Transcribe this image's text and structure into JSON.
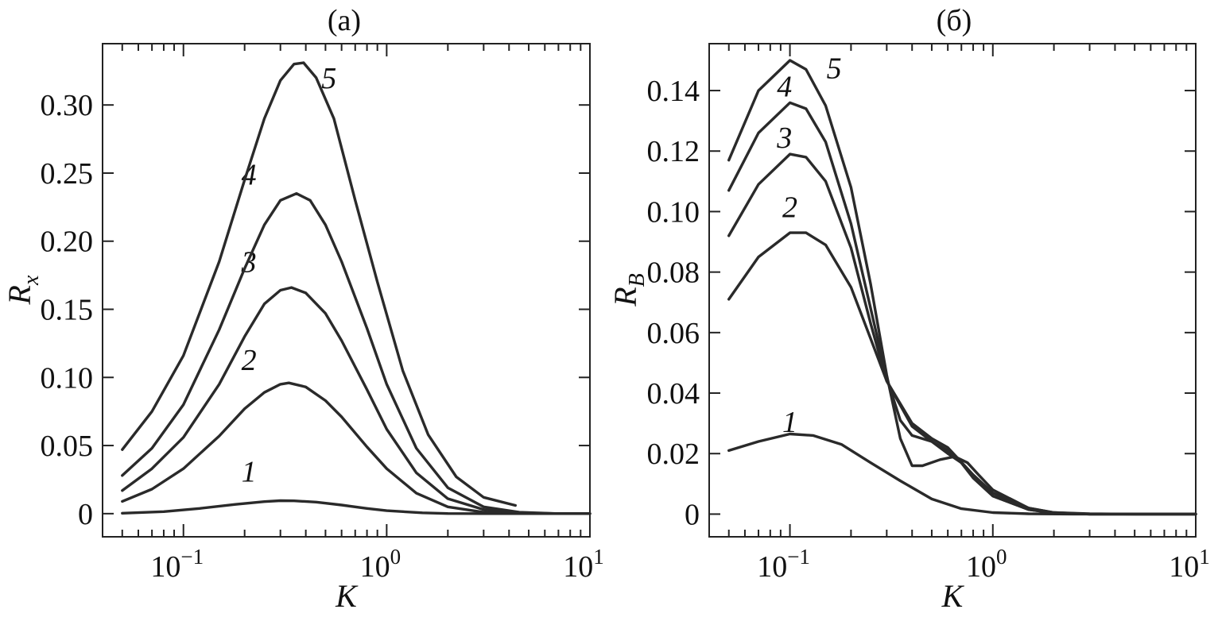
{
  "chart_data": [
    {
      "type": "line",
      "panel": "(a)",
      "xlabel": "K",
      "ylabel_main": "R",
      "ylabel_sub": "x",
      "xscale": "log",
      "xlim": [
        0.04,
        10
      ],
      "ylim": [
        -0.017,
        0.345
      ],
      "xticks": [
        {
          "value": 0.1,
          "base": "10",
          "exp": "−1"
        },
        {
          "value": 1,
          "base": "10",
          "exp": "0"
        },
        {
          "value": 10,
          "base": "10",
          "exp": "1"
        }
      ],
      "yticks": [
        {
          "value": 0,
          "label": "0"
        },
        {
          "value": 0.05,
          "label": "0.05"
        },
        {
          "value": 0.1,
          "label": "0.10"
        },
        {
          "value": 0.15,
          "label": "0.15"
        },
        {
          "value": 0.2,
          "label": "0.20"
        },
        {
          "value": 0.25,
          "label": "0.25"
        },
        {
          "value": 0.3,
          "label": "0.30"
        }
      ],
      "series": [
        {
          "name": "1",
          "label_at": [
            0.21,
            0.031
          ],
          "points": [
            [
              0.05,
              0.0003
            ],
            [
              0.08,
              0.0015
            ],
            [
              0.12,
              0.0038
            ],
            [
              0.18,
              0.0068
            ],
            [
              0.25,
              0.0088
            ],
            [
              0.3,
              0.0095
            ],
            [
              0.35,
              0.0094
            ],
            [
              0.45,
              0.0085
            ],
            [
              0.6,
              0.0063
            ],
            [
              0.8,
              0.0038
            ],
            [
              1.0,
              0.0022
            ],
            [
              1.5,
              0.0006
            ],
            [
              2.0,
              0.0001
            ],
            [
              3.0,
              0
            ],
            [
              5.0,
              0
            ],
            [
              10,
              0
            ]
          ]
        },
        {
          "name": "2",
          "label_at": [
            0.21,
            0.113
          ],
          "points": [
            [
              0.05,
              0.009
            ],
            [
              0.07,
              0.018
            ],
            [
              0.1,
              0.033
            ],
            [
              0.15,
              0.057
            ],
            [
              0.2,
              0.077
            ],
            [
              0.25,
              0.089
            ],
            [
              0.3,
              0.095
            ],
            [
              0.33,
              0.096
            ],
            [
              0.4,
              0.093
            ],
            [
              0.5,
              0.083
            ],
            [
              0.6,
              0.071
            ],
            [
              0.8,
              0.049
            ],
            [
              1.0,
              0.033
            ],
            [
              1.4,
              0.015
            ],
            [
              2.0,
              0.005
            ],
            [
              3.0,
              0.001
            ],
            [
              4.0,
              0.0002
            ],
            [
              6.0,
              0
            ],
            [
              10,
              0
            ]
          ]
        },
        {
          "name": "3",
          "label_at": [
            0.21,
            0.185
          ],
          "points": [
            [
              0.05,
              0.017
            ],
            [
              0.07,
              0.033
            ],
            [
              0.1,
              0.056
            ],
            [
              0.15,
              0.095
            ],
            [
              0.2,
              0.13
            ],
            [
              0.25,
              0.154
            ],
            [
              0.3,
              0.164
            ],
            [
              0.34,
              0.166
            ],
            [
              0.4,
              0.162
            ],
            [
              0.5,
              0.147
            ],
            [
              0.6,
              0.127
            ],
            [
              0.8,
              0.091
            ],
            [
              1.0,
              0.062
            ],
            [
              1.4,
              0.03
            ],
            [
              2.0,
              0.011
            ],
            [
              3.0,
              0.003
            ],
            [
              4.5,
              0.0005
            ],
            [
              7.0,
              0
            ],
            [
              10,
              0
            ]
          ]
        },
        {
          "name": "4",
          "label_at": [
            0.21,
            0.249
          ],
          "points": [
            [
              0.05,
              0.028
            ],
            [
              0.07,
              0.048
            ],
            [
              0.1,
              0.08
            ],
            [
              0.15,
              0.135
            ],
            [
              0.2,
              0.18
            ],
            [
              0.25,
              0.212
            ],
            [
              0.3,
              0.23
            ],
            [
              0.36,
              0.235
            ],
            [
              0.42,
              0.23
            ],
            [
              0.5,
              0.212
            ],
            [
              0.6,
              0.185
            ],
            [
              0.8,
              0.136
            ],
            [
              1.0,
              0.095
            ],
            [
              1.4,
              0.048
            ],
            [
              2.0,
              0.019
            ],
            [
              3.0,
              0.005
            ],
            [
              4.5,
              0.001
            ],
            [
              7.0,
              0
            ],
            [
              10,
              0
            ]
          ]
        },
        {
          "name": "5",
          "label_at": [
            0.52,
            0.32
          ],
          "points": [
            [
              0.05,
              0.047
            ],
            [
              0.07,
              0.075
            ],
            [
              0.1,
              0.116
            ],
            [
              0.15,
              0.185
            ],
            [
              0.2,
              0.245
            ],
            [
              0.25,
              0.29
            ],
            [
              0.3,
              0.318
            ],
            [
              0.35,
              0.33
            ],
            [
              0.39,
              0.331
            ],
            [
              0.45,
              0.32
            ],
            [
              0.55,
              0.29
            ],
            [
              0.7,
              0.23
            ],
            [
              0.9,
              0.17
            ],
            [
              1.2,
              0.105
            ],
            [
              1.6,
              0.058
            ],
            [
              2.2,
              0.027
            ],
            [
              3.0,
              0.012
            ],
            [
              4.3,
              0.006
            ]
          ]
        }
      ]
    },
    {
      "type": "line",
      "panel": "(б)",
      "xlabel": "K",
      "ylabel_main": "R",
      "ylabel_sub": "B",
      "xscale": "log",
      "xlim": [
        0.04,
        10
      ],
      "ylim": [
        -0.0075,
        0.1555
      ],
      "xticks": [
        {
          "value": 0.1,
          "base": "10",
          "exp": "−1"
        },
        {
          "value": 1,
          "base": "10",
          "exp": "0"
        },
        {
          "value": 10,
          "base": "10",
          "exp": "1"
        }
      ],
      "yticks": [
        {
          "value": 0,
          "label": "0"
        },
        {
          "value": 0.02,
          "label": "0.02"
        },
        {
          "value": 0.04,
          "label": "0.04"
        },
        {
          "value": 0.06,
          "label": "0.06"
        },
        {
          "value": 0.08,
          "label": "0.08"
        },
        {
          "value": 0.1,
          "label": "0.10"
        },
        {
          "value": 0.12,
          "label": "0.12"
        },
        {
          "value": 0.14,
          "label": "0.14"
        }
      ],
      "series": [
        {
          "name": "1",
          "label_at": [
            0.1,
            0.0305
          ],
          "points": [
            [
              0.05,
              0.021
            ],
            [
              0.07,
              0.024
            ],
            [
              0.1,
              0.0265
            ],
            [
              0.13,
              0.026
            ],
            [
              0.18,
              0.023
            ],
            [
              0.25,
              0.017
            ],
            [
              0.35,
              0.011
            ],
            [
              0.5,
              0.005
            ],
            [
              0.7,
              0.0018
            ],
            [
              1.0,
              0.0005
            ],
            [
              1.5,
              0.0001
            ],
            [
              2.5,
              0
            ],
            [
              10,
              0
            ]
          ]
        },
        {
          "name": "2",
          "label_at": [
            0.1,
            0.1015
          ],
          "points": [
            [
              0.05,
              0.071
            ],
            [
              0.07,
              0.085
            ],
            [
              0.1,
              0.093
            ],
            [
              0.12,
              0.093
            ],
            [
              0.15,
              0.089
            ],
            [
              0.2,
              0.075
            ],
            [
              0.25,
              0.058
            ],
            [
              0.3,
              0.044
            ],
            [
              0.4,
              0.03
            ],
            [
              0.5,
              0.025
            ],
            [
              0.6,
              0.022
            ],
            [
              0.8,
              0.013
            ],
            [
              1.0,
              0.007
            ],
            [
              1.5,
              0.002
            ],
            [
              2.0,
              0.0005
            ],
            [
              3.0,
              0.0001
            ],
            [
              5.0,
              0
            ],
            [
              10,
              0
            ]
          ]
        },
        {
          "name": "3",
          "label_at": [
            0.094,
            0.1245
          ],
          "points": [
            [
              0.05,
              0.092
            ],
            [
              0.07,
              0.109
            ],
            [
              0.1,
              0.119
            ],
            [
              0.12,
              0.118
            ],
            [
              0.15,
              0.11
            ],
            [
              0.2,
              0.088
            ],
            [
              0.25,
              0.063
            ],
            [
              0.3,
              0.044
            ],
            [
              0.4,
              0.029
            ],
            [
              0.5,
              0.024
            ],
            [
              0.6,
              0.02
            ],
            [
              0.7,
              0.017
            ],
            [
              0.8,
              0.012
            ],
            [
              1.0,
              0.006
            ],
            [
              1.5,
              0.0015
            ],
            [
              2.0,
              0.0004
            ],
            [
              3.0,
              0
            ],
            [
              10,
              0
            ]
          ]
        },
        {
          "name": "4",
          "label_at": [
            0.094,
            0.1415
          ],
          "points": [
            [
              0.05,
              0.107
            ],
            [
              0.07,
              0.126
            ],
            [
              0.1,
              0.136
            ],
            [
              0.12,
              0.134
            ],
            [
              0.15,
              0.123
            ],
            [
              0.2,
              0.096
            ],
            [
              0.25,
              0.068
            ],
            [
              0.3,
              0.045
            ],
            [
              0.35,
              0.031
            ],
            [
              0.4,
              0.026
            ],
            [
              0.5,
              0.024
            ],
            [
              0.6,
              0.021
            ],
            [
              0.7,
              0.017
            ],
            [
              0.8,
              0.012
            ],
            [
              1.0,
              0.006
            ],
            [
              1.5,
              0.0015
            ],
            [
              2.0,
              0.0004
            ],
            [
              3.0,
              0
            ],
            [
              10,
              0
            ]
          ]
        },
        {
          "name": "5",
          "label_at": [
            0.165,
            0.1475
          ],
          "points": [
            [
              0.05,
              0.117
            ],
            [
              0.07,
              0.14
            ],
            [
              0.1,
              0.15
            ],
            [
              0.12,
              0.147
            ],
            [
              0.15,
              0.135
            ],
            [
              0.2,
              0.108
            ],
            [
              0.25,
              0.076
            ],
            [
              0.3,
              0.046
            ],
            [
              0.35,
              0.025
            ],
            [
              0.4,
              0.016
            ],
            [
              0.45,
              0.016
            ],
            [
              0.55,
              0.018
            ],
            [
              0.65,
              0.019
            ],
            [
              0.75,
              0.017
            ],
            [
              0.85,
              0.013
            ],
            [
              1.0,
              0.008
            ],
            [
              1.5,
              0.002
            ],
            [
              2.0,
              0.0005
            ],
            [
              3.0,
              0
            ],
            [
              10,
              0
            ]
          ]
        }
      ]
    }
  ]
}
